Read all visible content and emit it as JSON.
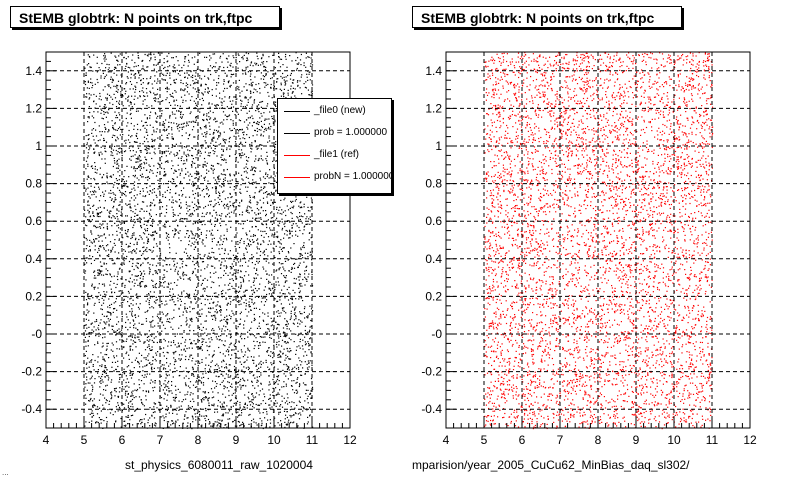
{
  "colors": {
    "new": "#000000",
    "ref": "#ff0000"
  },
  "panels": [
    {
      "title": "StEMB globtrk: N points on trk,ftpc",
      "xlabel": "st_physics_6080011_raw_1020004",
      "color": "#000000",
      "legend": [
        {
          "label": "_file0 (new)",
          "color": "#000000"
        },
        {
          "label": "prob = 1.000000",
          "color": "#000000"
        },
        {
          "label": "_file1 (ref)",
          "color": "#ff0000"
        },
        {
          "label": "probN = 1.000000",
          "color": "#ff0000"
        }
      ]
    },
    {
      "title": "StEMB globtrk: N points on trk,ftpc",
      "xlabel": "mparision/year_2005_CuCu62_MinBias_daq_sl302/",
      "color": "#ff0000"
    }
  ],
  "footer": "...",
  "chart_data": [
    {
      "type": "scatter",
      "title": "StEMB globtrk: N points on trk,ftpc",
      "xlabel": "st_physics_6080011_raw_1020004",
      "xlim": [
        4,
        12
      ],
      "ylim": [
        -0.5,
        1.5
      ],
      "xticks": [
        4,
        5,
        6,
        7,
        8,
        9,
        10,
        11,
        12
      ],
      "yticks": [
        -0.4,
        -0.2,
        0,
        0.2,
        0.4,
        0.6,
        0.8,
        1,
        1.2,
        1.4
      ],
      "ytick_labels": [
        "-0.4",
        "-0.2",
        "-0",
        "0.2",
        "0.4",
        "0.6",
        "0.8",
        "1",
        "1.2",
        "1.4"
      ],
      "grid": true,
      "series_color": "#000000",
      "point_region": {
        "x": [
          5,
          11
        ],
        "y": [
          -0.5,
          1.5
        ]
      },
      "n_points": 6000
    },
    {
      "type": "scatter",
      "title": "StEMB globtrk: N points on trk,ftpc",
      "xlabel": "mparision/year_2005_CuCu62_MinBias_daq_sl302/",
      "xlim": [
        4,
        12
      ],
      "ylim": [
        -0.5,
        1.5
      ],
      "xticks": [
        4,
        5,
        6,
        7,
        8,
        9,
        10,
        11,
        12
      ],
      "yticks": [
        -0.4,
        -0.2,
        0,
        0.2,
        0.4,
        0.6,
        0.8,
        1,
        1.2,
        1.4
      ],
      "ytick_labels": [
        "-0.4",
        "-0.2",
        "-0",
        "0.2",
        "0.4",
        "0.6",
        "0.8",
        "1",
        "1.2",
        "1.4"
      ],
      "grid": true,
      "series_color": "#ff0000",
      "point_region": {
        "x": [
          5,
          11
        ],
        "y": [
          -0.5,
          1.5
        ]
      },
      "n_points": 6000
    }
  ]
}
